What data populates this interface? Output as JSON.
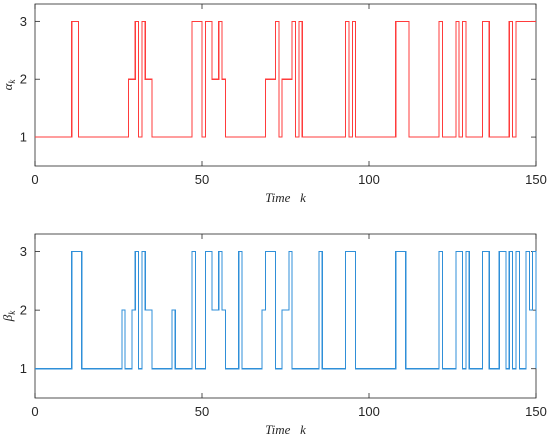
{
  "chart_data": [
    {
      "type": "line",
      "step": true,
      "title": "",
      "xlabel": "Time   k",
      "ylabel_symbol": "α",
      "ylabel_subscript": "k",
      "xlim": [
        0,
        150
      ],
      "ylim": [
        0.5,
        3.3
      ],
      "xticks": [
        0,
        50,
        100,
        150
      ],
      "yticks": [
        1,
        2,
        3
      ],
      "grid": false,
      "legend": "none",
      "series": [
        {
          "color": "#ff3b3b",
          "x": [
            0,
            11,
            13,
            28,
            30,
            31,
            32,
            33,
            35,
            47,
            50,
            51,
            53,
            55,
            56,
            57,
            69,
            72,
            73,
            74,
            77,
            78,
            79,
            80,
            93,
            94,
            95,
            96,
            97,
            108,
            112,
            121,
            122,
            126,
            127,
            128,
            129,
            130,
            134,
            136,
            142,
            143,
            144,
            145,
            150
          ],
          "y": [
            1,
            3,
            1,
            2,
            3,
            1,
            3,
            2,
            1,
            3,
            1,
            3,
            2,
            3,
            2,
            1,
            2,
            3,
            1,
            2,
            3,
            1,
            3,
            1,
            3,
            1,
            3,
            1,
            1,
            3,
            1,
            3,
            1,
            3,
            1,
            3,
            1,
            1,
            3,
            1,
            3,
            1,
            3,
            3,
            3
          ]
        }
      ]
    },
    {
      "type": "line",
      "step": true,
      "title": "",
      "xlabel": "Time   k",
      "ylabel_symbol": "β",
      "ylabel_subscript": "k",
      "xlim": [
        0,
        150
      ],
      "ylim": [
        0.5,
        3.3
      ],
      "xticks": [
        0,
        50,
        100,
        150
      ],
      "yticks": [
        1,
        2,
        3
      ],
      "grid": false,
      "legend": "none",
      "series": [
        {
          "color": "#2f8fd8",
          "x": [
            0,
            11,
            14,
            26,
            27,
            29,
            30,
            31,
            32,
            33,
            34,
            35,
            41,
            42,
            47,
            48,
            51,
            53,
            55,
            56,
            57,
            61,
            62,
            68,
            69,
            72,
            74,
            76,
            77,
            85,
            86,
            93,
            96,
            108,
            111,
            121,
            122,
            126,
            128,
            129,
            130,
            134,
            136,
            139,
            141,
            142,
            143,
            144,
            145,
            147,
            148,
            149,
            150
          ],
          "y": [
            1,
            3,
            1,
            2,
            1,
            2,
            3,
            1,
            3,
            2,
            2,
            1,
            2,
            1,
            3,
            1,
            3,
            2,
            3,
            2,
            1,
            3,
            1,
            2,
            3,
            1,
            2,
            3,
            1,
            3,
            1,
            3,
            1,
            3,
            1,
            3,
            1,
            3,
            1,
            3,
            1,
            3,
            1,
            3,
            1,
            3,
            1,
            3,
            1,
            3,
            2,
            3,
            1
          ]
        }
      ]
    }
  ]
}
